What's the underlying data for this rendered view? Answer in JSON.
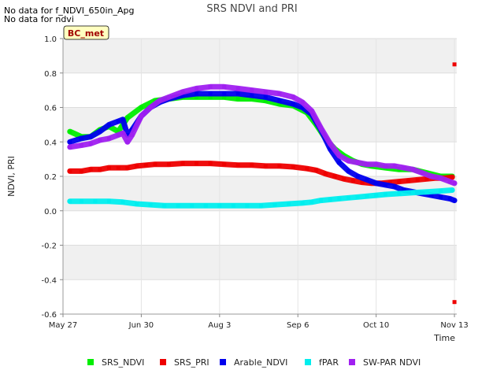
{
  "notes": [
    "No data for f_NDVI_650in_Apg",
    "No data for ndvi"
  ],
  "site_badge": "BC_met",
  "chart_data": {
    "type": "scatter",
    "title": "SRS NDVI and PRI",
    "xlabel": "Time",
    "ylabel": "NDVI, PRI",
    "ylim": [
      -0.6,
      1.0
    ],
    "xlim_days": [
      0,
      171
    ],
    "yticks": [
      -0.6,
      -0.4,
      -0.2,
      0.0,
      0.2,
      0.4,
      0.6,
      0.8,
      1.0
    ],
    "ytick_labels": [
      "-0.6",
      "-0.4",
      "-0.2",
      "0.0",
      "0.2",
      "0.4",
      "0.6",
      "0.8",
      "1.0"
    ],
    "xticks": [
      {
        "label": "May 27",
        "day": 0
      },
      {
        "label": "Jun 30",
        "day": 34
      },
      {
        "label": "Aug 3",
        "day": 68
      },
      {
        "label": "Sep 6",
        "day": 102
      },
      {
        "label": "Oct 10",
        "day": 136
      },
      {
        "label": "Nov 13",
        "day": 170
      }
    ],
    "grid": true,
    "legend_position": "bottom",
    "series": [
      {
        "name": "SRS_NDVI",
        "color": "#00ee00",
        "points": [
          [
            3,
            0.46
          ],
          [
            8,
            0.43
          ],
          [
            12,
            0.43
          ],
          [
            16,
            0.47
          ],
          [
            20,
            0.49
          ],
          [
            24,
            0.46
          ],
          [
            28,
            0.54
          ],
          [
            34,
            0.6
          ],
          [
            40,
            0.64
          ],
          [
            46,
            0.65
          ],
          [
            52,
            0.66
          ],
          [
            58,
            0.66
          ],
          [
            64,
            0.66
          ],
          [
            70,
            0.66
          ],
          [
            76,
            0.65
          ],
          [
            82,
            0.65
          ],
          [
            88,
            0.64
          ],
          [
            94,
            0.62
          ],
          [
            100,
            0.61
          ],
          [
            106,
            0.57
          ],
          [
            110,
            0.5
          ],
          [
            114,
            0.42
          ],
          [
            118,
            0.36
          ],
          [
            122,
            0.32
          ],
          [
            126,
            0.29
          ],
          [
            130,
            0.27
          ],
          [
            134,
            0.26
          ],
          [
            140,
            0.25
          ],
          [
            146,
            0.24
          ],
          [
            152,
            0.24
          ],
          [
            158,
            0.22
          ],
          [
            164,
            0.2
          ],
          [
            169,
            0.2
          ]
        ]
      },
      {
        "name": "SRS_PRI",
        "color": "#ee0000",
        "points": [
          [
            3,
            0.23
          ],
          [
            8,
            0.23
          ],
          [
            12,
            0.24
          ],
          [
            16,
            0.24
          ],
          [
            20,
            0.25
          ],
          [
            24,
            0.25
          ],
          [
            28,
            0.25
          ],
          [
            32,
            0.26
          ],
          [
            36,
            0.265
          ],
          [
            40,
            0.27
          ],
          [
            46,
            0.27
          ],
          [
            52,
            0.275
          ],
          [
            58,
            0.275
          ],
          [
            64,
            0.275
          ],
          [
            70,
            0.27
          ],
          [
            76,
            0.265
          ],
          [
            82,
            0.265
          ],
          [
            88,
            0.26
          ],
          [
            94,
            0.26
          ],
          [
            100,
            0.255
          ],
          [
            106,
            0.245
          ],
          [
            110,
            0.235
          ],
          [
            114,
            0.215
          ],
          [
            118,
            0.2
          ],
          [
            122,
            0.185
          ],
          [
            126,
            0.175
          ],
          [
            130,
            0.165
          ],
          [
            134,
            0.16
          ],
          [
            138,
            0.16
          ],
          [
            142,
            0.165
          ],
          [
            146,
            0.17
          ],
          [
            150,
            0.175
          ],
          [
            154,
            0.18
          ],
          [
            158,
            0.185
          ],
          [
            162,
            0.19
          ],
          [
            166,
            0.19
          ],
          [
            169,
            0.195
          ],
          [
            170,
            0.85
          ],
          [
            170,
            -0.53
          ]
        ]
      },
      {
        "name": "Arable_NDVI",
        "color": "#0000ee",
        "points": [
          [
            3,
            0.4
          ],
          [
            8,
            0.42
          ],
          [
            12,
            0.43
          ],
          [
            16,
            0.46
          ],
          [
            20,
            0.5
          ],
          [
            24,
            0.52
          ],
          [
            26,
            0.53
          ],
          [
            28,
            0.44
          ],
          [
            30,
            0.47
          ],
          [
            34,
            0.55
          ],
          [
            38,
            0.6
          ],
          [
            42,
            0.63
          ],
          [
            46,
            0.65
          ],
          [
            52,
            0.67
          ],
          [
            58,
            0.68
          ],
          [
            64,
            0.68
          ],
          [
            70,
            0.68
          ],
          [
            76,
            0.68
          ],
          [
            82,
            0.67
          ],
          [
            88,
            0.66
          ],
          [
            94,
            0.64
          ],
          [
            100,
            0.62
          ],
          [
            104,
            0.6
          ],
          [
            108,
            0.56
          ],
          [
            112,
            0.47
          ],
          [
            116,
            0.36
          ],
          [
            120,
            0.28
          ],
          [
            124,
            0.23
          ],
          [
            128,
            0.2
          ],
          [
            132,
            0.18
          ],
          [
            136,
            0.16
          ],
          [
            140,
            0.15
          ],
          [
            144,
            0.14
          ],
          [
            148,
            0.12
          ],
          [
            152,
            0.11
          ],
          [
            156,
            0.1
          ],
          [
            160,
            0.09
          ],
          [
            164,
            0.08
          ],
          [
            168,
            0.07
          ],
          [
            170,
            0.06
          ]
        ]
      },
      {
        "name": "fPAR",
        "color": "#00eeee",
        "points": [
          [
            3,
            0.055
          ],
          [
            8,
            0.055
          ],
          [
            14,
            0.055
          ],
          [
            20,
            0.055
          ],
          [
            26,
            0.05
          ],
          [
            32,
            0.04
          ],
          [
            38,
            0.035
          ],
          [
            44,
            0.03
          ],
          [
            50,
            0.03
          ],
          [
            56,
            0.03
          ],
          [
            62,
            0.03
          ],
          [
            68,
            0.03
          ],
          [
            74,
            0.03
          ],
          [
            80,
            0.03
          ],
          [
            86,
            0.03
          ],
          [
            92,
            0.035
          ],
          [
            98,
            0.04
          ],
          [
            104,
            0.045
          ],
          [
            108,
            0.05
          ],
          [
            112,
            0.06
          ],
          [
            116,
            0.065
          ],
          [
            120,
            0.07
          ],
          [
            124,
            0.075
          ],
          [
            128,
            0.08
          ],
          [
            132,
            0.085
          ],
          [
            136,
            0.09
          ],
          [
            140,
            0.095
          ],
          [
            146,
            0.1
          ],
          [
            152,
            0.105
          ],
          [
            158,
            0.11
          ],
          [
            164,
            0.115
          ],
          [
            169,
            0.12
          ]
        ]
      },
      {
        "name": "SW-PAR NDVI",
        "color": "#a020f0",
        "points": [
          [
            3,
            0.37
          ],
          [
            8,
            0.38
          ],
          [
            12,
            0.39
          ],
          [
            16,
            0.41
          ],
          [
            20,
            0.42
          ],
          [
            24,
            0.44
          ],
          [
            26,
            0.45
          ],
          [
            28,
            0.4
          ],
          [
            30,
            0.44
          ],
          [
            34,
            0.55
          ],
          [
            38,
            0.6
          ],
          [
            42,
            0.64
          ],
          [
            46,
            0.66
          ],
          [
            52,
            0.69
          ],
          [
            58,
            0.71
          ],
          [
            64,
            0.72
          ],
          [
            70,
            0.72
          ],
          [
            76,
            0.71
          ],
          [
            82,
            0.7
          ],
          [
            88,
            0.69
          ],
          [
            94,
            0.68
          ],
          [
            100,
            0.66
          ],
          [
            104,
            0.63
          ],
          [
            108,
            0.58
          ],
          [
            112,
            0.48
          ],
          [
            116,
            0.39
          ],
          [
            120,
            0.32
          ],
          [
            124,
            0.29
          ],
          [
            128,
            0.28
          ],
          [
            132,
            0.27
          ],
          [
            136,
            0.27
          ],
          [
            140,
            0.26
          ],
          [
            144,
            0.26
          ],
          [
            148,
            0.25
          ],
          [
            152,
            0.24
          ],
          [
            156,
            0.22
          ],
          [
            160,
            0.2
          ],
          [
            164,
            0.19
          ],
          [
            168,
            0.17
          ],
          [
            170,
            0.16
          ]
        ]
      }
    ]
  }
}
